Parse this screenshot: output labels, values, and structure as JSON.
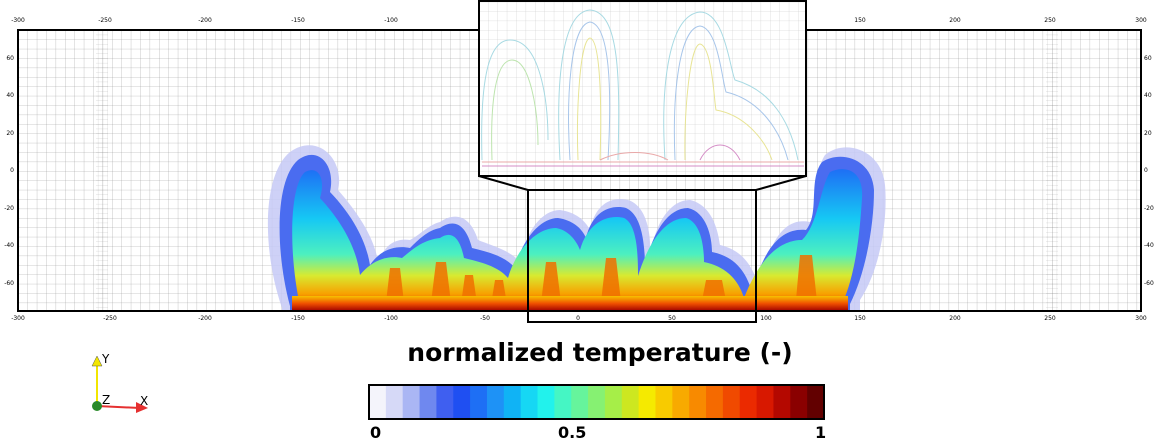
{
  "x_ticks": [
    "-300",
    "-250",
    "-200",
    "-150",
    "-100",
    "-50",
    "0",
    "50",
    "100",
    "150",
    "200",
    "250",
    "300"
  ],
  "y_ticks": [
    "60",
    "40",
    "20",
    "0",
    "-20",
    "-40",
    "-60"
  ],
  "colorbar": {
    "title": "normalized temperature (-)",
    "min_label": "0",
    "mid_label": "0.5",
    "max_label": "1",
    "colors": [
      "#f4f4fb",
      "#d6d9f7",
      "#aab6f4",
      "#6f88ef",
      "#3f5ff0",
      "#1f4ff2",
      "#1e6ff5",
      "#1e92f6",
      "#10b3f5",
      "#16d7f4",
      "#22f2ec",
      "#45f6c4",
      "#66f49c",
      "#86f172",
      "#a6ee48",
      "#cde720",
      "#f5ea00",
      "#f8cb00",
      "#f8aa00",
      "#f88a00",
      "#f56a00",
      "#f04a00",
      "#eb2a00",
      "#d81800",
      "#b40800",
      "#8a0000",
      "#620000"
    ]
  },
  "axes_triad": {
    "y_label": "Y",
    "z_label": "Z",
    "x_label": "X"
  },
  "field_colors": {
    "cold": "#3b5bff",
    "mid": "#22e4e8",
    "warm": "#f3ee28",
    "hot": "#e81c10"
  }
}
